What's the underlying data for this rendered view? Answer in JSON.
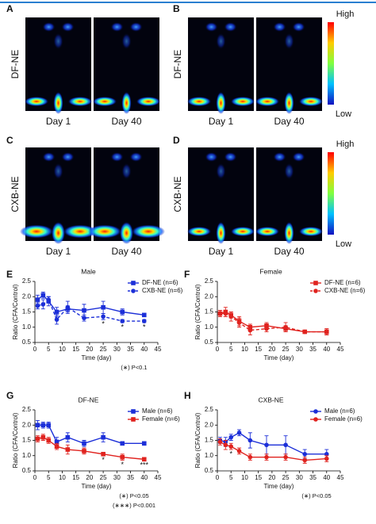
{
  "image_panels": [
    {
      "panel": "A",
      "label": "DF-NE",
      "captions": [
        "Day 1",
        "Day 40"
      ]
    },
    {
      "panel": "B",
      "label": "DF-NE",
      "captions": [
        "Day 1",
        "Day 40"
      ],
      "colorbar": {
        "high": "High",
        "low": "Low"
      }
    },
    {
      "panel": "C",
      "label": "CXB-NE",
      "captions": [
        "Day 1",
        "Day 40"
      ]
    },
    {
      "panel": "D",
      "label": "CXB-NE",
      "captions": [
        "Day 1",
        "Day 40"
      ],
      "colorbar": {
        "high": "High",
        "low": "Low"
      }
    }
  ],
  "chart_data": [
    {
      "type": "line",
      "panel": "E",
      "title": "Male",
      "xlabel": "Time (day)",
      "ylabel": "Ratio (CFA/Control)",
      "x": [
        1,
        3,
        5,
        8,
        12,
        18,
        25,
        32,
        40
      ],
      "xlim": [
        0,
        45
      ],
      "xticks": [
        0,
        5,
        10,
        15,
        20,
        25,
        30,
        35,
        40,
        45
      ],
      "ylim": [
        0.5,
        2.5
      ],
      "yticks": [
        0.5,
        {
          "value": 1,
          "label": "1.0"
        },
        1.5,
        {
          "value": 2,
          "label": "2.0"
        },
        2.5
      ],
      "legend": "upper right",
      "series": [
        {
          "name": "DF-NE (n=6)",
          "color": "#1c2fd8",
          "marker": "square",
          "dashed": false,
          "values": [
            1.9,
            2.05,
            1.85,
            1.5,
            1.6,
            1.55,
            1.65,
            1.5,
            1.4
          ],
          "errors": [
            0.15,
            0.1,
            0.15,
            0.15,
            0.1,
            0.2,
            0.2,
            0.1,
            0.05
          ]
        },
        {
          "name": "CXB-NE (n=6)",
          "color": "#1c2fd8",
          "marker": "circle",
          "dashed": true,
          "values": [
            1.7,
            1.75,
            1.9,
            1.25,
            1.65,
            1.3,
            1.35,
            1.2,
            1.2
          ],
          "errors": [
            0.1,
            0.15,
            0.1,
            0.15,
            0.2,
            0.1,
            0.1,
            0.05,
            0.05
          ]
        }
      ],
      "significance": [
        {
          "x": 25,
          "label": "*"
        },
        {
          "x": 32,
          "label": "*"
        },
        {
          "x": 40,
          "label": "*"
        }
      ],
      "notes": [
        "(∗) P<0.1"
      ]
    },
    {
      "type": "line",
      "panel": "F",
      "title": "Female",
      "xlabel": "Time (day)",
      "ylabel": "Ratio (CFA/Control)",
      "x": [
        1,
        3,
        5,
        8,
        12,
        18,
        25,
        32,
        40
      ],
      "xlim": [
        0,
        45
      ],
      "xticks": [
        0,
        5,
        10,
        15,
        20,
        25,
        30,
        35,
        40,
        45
      ],
      "ylim": [
        0.5,
        2.5
      ],
      "yticks": [
        0.5,
        {
          "value": 1,
          "label": "1.0"
        },
        1.5,
        {
          "value": 2,
          "label": "2.0"
        },
        2.5
      ],
      "legend": "upper right",
      "series": [
        {
          "name": "DF-NE (n=6)",
          "color": "#e0231f",
          "marker": "square",
          "dashed": false,
          "values": [
            1.45,
            1.5,
            1.4,
            1.2,
            1.0,
            1.05,
            0.95,
            0.85,
            0.85
          ],
          "errors": [
            0.1,
            0.15,
            0.1,
            0.15,
            0.1,
            0.1,
            0.1,
            0.05,
            0.1
          ]
        },
        {
          "name": "CXB-NE (n=6)",
          "color": "#e0231f",
          "marker": "circle",
          "dashed": true,
          "values": [
            1.45,
            1.45,
            1.35,
            1.15,
            0.9,
            0.95,
            1.0,
            0.85,
            0.85
          ],
          "errors": [
            0.1,
            0.1,
            0.15,
            0.15,
            0.15,
            0.1,
            0.15,
            0.05,
            0.1
          ]
        }
      ]
    },
    {
      "type": "line",
      "panel": "G",
      "title": "DF-NE",
      "xlabel": "Time (day)",
      "ylabel": "Ratio (CFA/Control)",
      "x": [
        1,
        3,
        5,
        8,
        12,
        18,
        25,
        32,
        40
      ],
      "xlim": [
        0,
        45
      ],
      "xticks": [
        0,
        5,
        10,
        15,
        20,
        25,
        30,
        35,
        40,
        45
      ],
      "ylim": [
        0.5,
        2.5
      ],
      "yticks": [
        0.5,
        {
          "value": 1,
          "label": "1.0"
        },
        1.5,
        {
          "value": 2,
          "label": "2.0"
        },
        2.5
      ],
      "legend": "upper right",
      "series": [
        {
          "name": "Male (n=6)",
          "color": "#1c2fd8",
          "marker": "square",
          "dashed": false,
          "values": [
            2.0,
            2.0,
            2.0,
            1.45,
            1.6,
            1.4,
            1.6,
            1.4,
            1.4
          ],
          "errors": [
            0.15,
            0.1,
            0.1,
            0.15,
            0.15,
            0.1,
            0.15,
            0.05,
            0.05
          ]
        },
        {
          "name": "Female (n=6)",
          "color": "#e0231f",
          "marker": "square",
          "dashed": false,
          "values": [
            1.55,
            1.6,
            1.5,
            1.3,
            1.2,
            1.15,
            1.05,
            0.95,
            0.88
          ],
          "errors": [
            0.1,
            0.1,
            0.1,
            0.1,
            0.15,
            0.1,
            0.05,
            0.1,
            0.05
          ]
        }
      ],
      "significance": [
        {
          "x": 25,
          "label": "*"
        },
        {
          "x": 32,
          "label": "*"
        },
        {
          "x": 40,
          "label": "***"
        }
      ],
      "notes": [
        "(∗) P<0.05",
        "(∗∗∗) P<0.001"
      ]
    },
    {
      "type": "line",
      "panel": "H",
      "title": "CXB-NE",
      "xlabel": "Time (day)",
      "ylabel": "Ratio (CFA/Control)",
      "x": [
        1,
        3,
        5,
        8,
        12,
        18,
        25,
        32,
        40
      ],
      "xlim": [
        0,
        45
      ],
      "xticks": [
        0,
        5,
        10,
        15,
        20,
        25,
        30,
        35,
        40,
        45
      ],
      "ylim": [
        0.5,
        2.5
      ],
      "yticks": [
        0.5,
        {
          "value": 1,
          "label": "1.0"
        },
        1.5,
        {
          "value": 2,
          "label": "2.0"
        },
        2.5
      ],
      "legend": "upper right",
      "series": [
        {
          "name": "Male (n=6)",
          "color": "#1c2fd8",
          "marker": "circle",
          "dashed": false,
          "values": [
            1.5,
            1.45,
            1.6,
            1.75,
            1.5,
            1.35,
            1.35,
            1.05,
            1.05
          ],
          "errors": [
            0.1,
            0.15,
            0.1,
            0.1,
            0.25,
            0.3,
            0.3,
            0.15,
            0.15
          ]
        },
        {
          "name": "Female (n=6)",
          "color": "#e0231f",
          "marker": "circle",
          "dashed": false,
          "values": [
            1.45,
            1.35,
            1.3,
            1.15,
            0.95,
            0.95,
            0.95,
            0.85,
            0.9
          ],
          "errors": [
            0.1,
            0.15,
            0.1,
            0.1,
            0.1,
            0.1,
            0.1,
            0.1,
            0.1
          ]
        }
      ],
      "significance": [
        {
          "x": 5,
          "label": "*"
        }
      ],
      "notes": [
        "(∗) P<0.05"
      ]
    }
  ]
}
